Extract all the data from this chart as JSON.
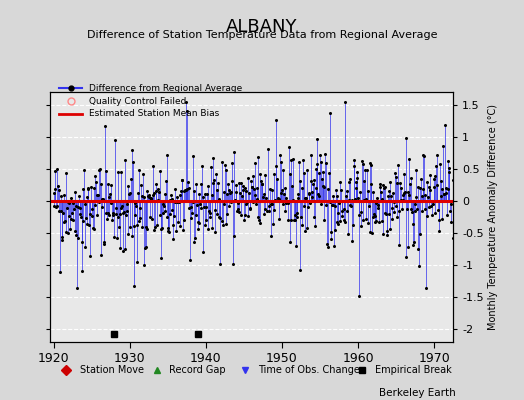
{
  "title": "ALBANY",
  "subtitle": "Difference of Station Temperature Data from Regional Average",
  "ylabel_right": "Monthly Temperature Anomaly Difference (°C)",
  "ylim": [
    -2.2,
    1.7
  ],
  "yticks": [
    -2,
    -1.5,
    -1,
    -0.5,
    0,
    0.5,
    1,
    1.5
  ],
  "xlim": [
    1919.5,
    1972.5
  ],
  "xticks": [
    1920,
    1930,
    1940,
    1950,
    1960,
    1970
  ],
  "bias_line_y": 0.0,
  "bias_line_color": "#dd0000",
  "data_color": "#3333ee",
  "background_color": "#d8d8d8",
  "plot_bg_color": "#e8e8e8",
  "grid_color": "#ffffff",
  "watermark": "Berkeley Earth",
  "empirical_break_years": [
    1928,
    1939
  ],
  "obs_change_years": [],
  "seed": 42
}
